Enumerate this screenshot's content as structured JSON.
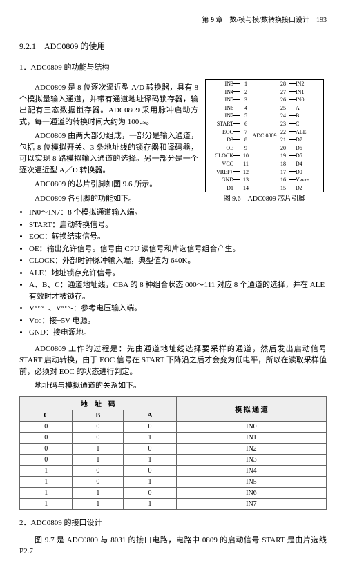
{
  "header": {
    "chapter_label": "第",
    "chapter_num": "9",
    "chapter_suffix": "章　数/模与模/数转换接口设计",
    "page_num": "193"
  },
  "titles": {
    "section": "9.2.1　ADC0809 的使用",
    "sub1": "1．ADC0809 的功能与结构",
    "sub2": "2．ADC0809 的接口设计"
  },
  "paras": {
    "p1": "ADC0809 是 8 位逐次逼近型 A/D 转换器，具有 8 个模拟量输入通道，并带有通道地址译码锁存器，输出配有三态数据锁存器。ADC0809 采用脉冲启动方式，每一通道的转换时间大约为 100μs。",
    "p2": "ADC0809 由两大部分组成，一部分是输入通道，包括 8 位模拟开关、3 条地址线的锁存器和译码器，可以实现 8 路模拟输入通道的选择。另一部分是一个逐次逼近型 A／D 转换器。",
    "p3": "ADC0809 的芯片引脚如图 9.6 所示。",
    "p4": "ADC0809 各引脚的功能如下。",
    "p5": "ADC0809 工作的过程是：先由通道地址线选择要采样的通道，然后发出启动信号 START 启动转换，由于 EOC 信号在 START 下降沿之后才会变为低电平，所以在读取采样值前，必须对 EOC 的状态进行判定。",
    "p6": "地址码与模拟通道的关系如下。",
    "p7": "图 9.7 是 ADC0809 与 8031 的接口电路，电路中 0809 的启动信号 START 是由片选线 P2.7"
  },
  "bullets": [
    "IN0～IN7：8 个模拟通道输入端。",
    "START：启动转换信号。",
    "EOC：转换结束信号。",
    "OE：输出允许信号。信号由 CPU 读信号和片选信号组合产生。",
    "CLOCK：外部时钟脉冲输入端，典型值为 640K。",
    "ALE：地址锁存允许信号。",
    "A、B、C：通道地址线，CBA 的 8 种组合状态 000～111 对应 8 个通道的选择，并在 ALE 有效时才被锁存。",
    "Vᴿᴱᴺ+、Vᴿᴱᴺ-：参考电压输入端。",
    "Vᴄᴄ：接+5V 电源。",
    "GND：接电源地。"
  ],
  "chip": {
    "name": "ADC\n0809",
    "caption": "图 9.6　ADC0809 芯片引脚",
    "rows": [
      {
        "l": "IN3",
        "nl": "1",
        "nr": "28",
        "r": "IN2"
      },
      {
        "l": "IN4",
        "nl": "2",
        "nr": "27",
        "r": "IN1"
      },
      {
        "l": "IN5",
        "nl": "3",
        "nr": "26",
        "r": "IN0"
      },
      {
        "l": "IN6",
        "nl": "4",
        "nr": "25",
        "r": "A"
      },
      {
        "l": "IN7",
        "nl": "5",
        "nr": "24",
        "r": "B"
      },
      {
        "l": "START",
        "nl": "6",
        "nr": "23",
        "r": "C"
      },
      {
        "l": "EOC",
        "nl": "7",
        "nr": "22",
        "r": "ALE"
      },
      {
        "l": "D3",
        "nl": "8",
        "nr": "21",
        "r": "D7"
      },
      {
        "l": "OE",
        "nl": "9",
        "nr": "20",
        "r": "D6"
      },
      {
        "l": "CLOCK",
        "nl": "10",
        "nr": "19",
        "r": "D5"
      },
      {
        "l": "VCC",
        "nl": "11",
        "nr": "18",
        "r": "D4"
      },
      {
        "l": "VREF+",
        "nl": "12",
        "nr": "17",
        "r": "D0"
      },
      {
        "l": "GND",
        "nl": "13",
        "nr": "16",
        "r": "Vʀᴇғ-"
      },
      {
        "l": "D1",
        "nl": "14",
        "nr": "15",
        "r": "D2"
      }
    ]
  },
  "table": {
    "head_group": "地　址　码",
    "head_chan": "模 拟 通 道",
    "cols": [
      "C",
      "B",
      "A"
    ],
    "rows": [
      {
        "c": "0",
        "b": "0",
        "a": "0",
        "ch": "IN0"
      },
      {
        "c": "0",
        "b": "0",
        "a": "1",
        "ch": "IN1"
      },
      {
        "c": "0",
        "b": "1",
        "a": "0",
        "ch": "IN2"
      },
      {
        "c": "0",
        "b": "1",
        "a": "1",
        "ch": "IN3"
      },
      {
        "c": "1",
        "b": "0",
        "a": "0",
        "ch": "IN4"
      },
      {
        "c": "1",
        "b": "0",
        "a": "1",
        "ch": "IN5"
      },
      {
        "c": "1",
        "b": "1",
        "a": "0",
        "ch": "IN6"
      },
      {
        "c": "1",
        "b": "1",
        "a": "1",
        "ch": "IN7"
      }
    ]
  }
}
